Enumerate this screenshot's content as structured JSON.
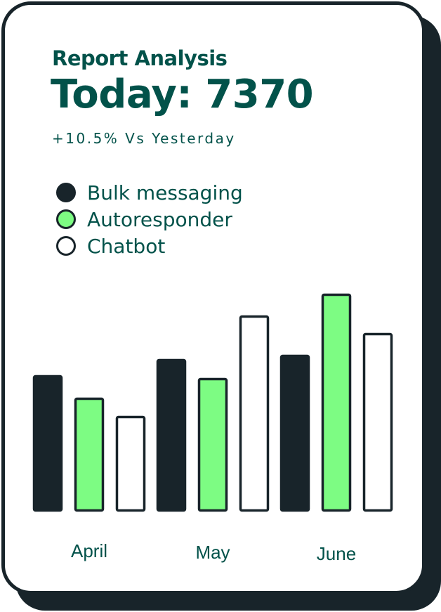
{
  "header": {
    "title": "Report Analysis",
    "today": "Today: 7370",
    "comparison": "+10.5% Vs Yesterday"
  },
  "chart_data": {
    "type": "bar",
    "categories": [
      "April",
      "May",
      "June"
    ],
    "series": [
      {
        "name": "Bulk messaging",
        "color": "#18242a",
        "values": [
          194,
          217,
          223
        ]
      },
      {
        "name": "Autoresponder",
        "color": "#7dfc83",
        "values": [
          162,
          190,
          310
        ]
      },
      {
        "name": "Chatbot",
        "color": "#ffffff",
        "values": [
          136,
          279,
          254
        ]
      }
    ],
    "ylim": [
      0,
      310
    ],
    "grid": false,
    "legend": "top-left"
  },
  "colors": {
    "text": "#02524a",
    "dark": "#18242a",
    "green": "#7dfc83"
  }
}
